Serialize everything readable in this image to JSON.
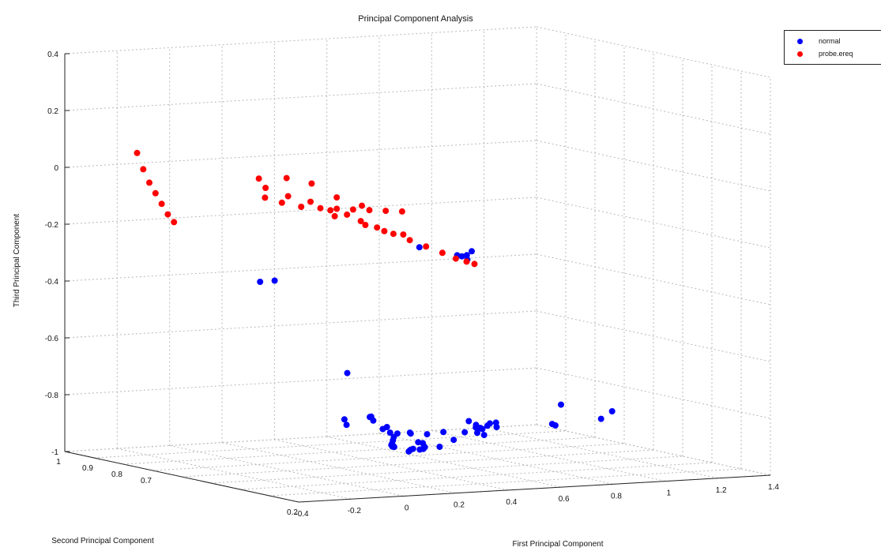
{
  "chart_data": {
    "type": "scatter",
    "projection": "3d",
    "title": "Principal Component Analysis",
    "xlabel": "First Principal Component",
    "ylabel": "Second Principal Component",
    "zlabel": "Third Principal Component",
    "xlim": [
      -0.4,
      1.4
    ],
    "ylim": [
      0.2,
      1
    ],
    "zlim": [
      -1,
      0.4
    ],
    "x_ticks": [
      "-0.4",
      "-0.2",
      "0",
      "0.2",
      "0.4",
      "0.6",
      "0.8",
      "1",
      "1.2",
      "1.4"
    ],
    "y_ticks": [
      "1",
      "0.9",
      "0.8",
      "0.7",
      "0.6",
      "0.5",
      "0.4",
      "0.3",
      "0.2"
    ],
    "y_tick_labels_shown": [
      "1",
      "0.9",
      "0.8",
      "0.7",
      "0.2"
    ],
    "z_ticks": [
      "0.4",
      "0.2",
      "0",
      "-0.2",
      "-0.4",
      "-0.6",
      "-0.8",
      "-1"
    ],
    "grid": true,
    "legend_position": "top-right",
    "series": [
      {
        "name": "normal",
        "color": "#0000ff",
        "points": [
          [
            0.15,
            0.28,
            -0.15
          ],
          [
            0.35,
            0.33,
            -0.2
          ],
          [
            0.39,
            0.35,
            -0.21
          ],
          [
            0.4,
            0.34,
            -0.22
          ],
          [
            0.42,
            0.36,
            -0.21
          ],
          [
            0.45,
            0.37,
            -0.2
          ],
          [
            0.1,
            0.78,
            -0.38
          ],
          [
            0.2,
            0.82,
            -0.39
          ],
          [
            0.12,
            0.5,
            -0.64
          ],
          [
            -0.05,
            0.35,
            -0.78
          ],
          [
            0.02,
            0.42,
            -0.78
          ],
          [
            0.05,
            0.36,
            -0.76
          ],
          [
            0.1,
            0.4,
            -0.77
          ],
          [
            0.13,
            0.42,
            -0.79
          ],
          [
            0.16,
            0.4,
            -0.81
          ],
          [
            0.2,
            0.45,
            -0.83
          ],
          [
            0.25,
            0.47,
            -0.85
          ],
          [
            0.3,
            0.49,
            -0.86
          ],
          [
            0.27,
            0.42,
            -0.84
          ],
          [
            0.32,
            0.52,
            -0.88
          ],
          [
            0.35,
            0.55,
            -0.9
          ],
          [
            0.38,
            0.58,
            -0.92
          ],
          [
            0.34,
            0.48,
            -0.86
          ],
          [
            0.4,
            0.6,
            -0.93
          ],
          [
            0.43,
            0.62,
            -0.94
          ],
          [
            0.46,
            0.65,
            -0.95
          ],
          [
            0.5,
            0.68,
            -0.96
          ],
          [
            0.48,
            0.58,
            -0.92
          ],
          [
            0.52,
            0.6,
            -0.93
          ],
          [
            0.55,
            0.62,
            -0.95
          ],
          [
            0.58,
            0.65,
            -0.96
          ],
          [
            0.6,
            0.67,
            -0.97
          ],
          [
            0.62,
            0.7,
            -0.98
          ],
          [
            0.6,
            0.72,
            -0.99
          ],
          [
            0.63,
            0.74,
            -0.99
          ],
          [
            0.65,
            0.75,
            -0.99
          ],
          [
            0.64,
            0.65,
            -0.96
          ],
          [
            0.66,
            0.62,
            -0.93
          ],
          [
            0.68,
            0.6,
            -0.9
          ],
          [
            0.7,
            0.58,
            -0.88
          ],
          [
            0.72,
            0.55,
            -0.86
          ],
          [
            0.71,
            0.52,
            -0.85
          ],
          [
            0.69,
            0.5,
            -0.86
          ],
          [
            0.75,
            0.62,
            -0.91
          ],
          [
            0.78,
            0.65,
            -0.9
          ],
          [
            0.8,
            0.63,
            -0.89
          ],
          [
            0.62,
            0.48,
            -0.88
          ],
          [
            0.58,
            0.45,
            -0.85
          ],
          [
            0.55,
            0.43,
            -0.84
          ],
          [
            0.5,
            0.4,
            -0.82
          ],
          [
            0.45,
            0.38,
            -0.8
          ],
          [
            0.42,
            0.44,
            -0.85
          ],
          [
            0.38,
            0.46,
            -0.86
          ],
          [
            0.88,
            0.45,
            -0.78
          ],
          [
            0.97,
            0.55,
            -0.88
          ],
          [
            0.98,
            0.57,
            -0.88
          ],
          [
            1.2,
            0.6,
            -0.88
          ],
          [
            1.22,
            0.58,
            -0.85
          ]
        ]
      },
      {
        "name": "probe.ereq",
        "color": "#ff0000",
        "points": [
          [
            -0.18,
            0.95,
            0.05
          ],
          [
            -0.19,
            0.92,
            0.0
          ],
          [
            -0.2,
            0.89,
            -0.04
          ],
          [
            -0.21,
            0.86,
            -0.07
          ],
          [
            -0.22,
            0.83,
            -0.1
          ],
          [
            -0.23,
            0.8,
            -0.13
          ],
          [
            -0.24,
            0.77,
            -0.15
          ],
          [
            -0.08,
            0.6,
            0.0
          ],
          [
            -0.05,
            0.55,
            -0.02
          ],
          [
            -0.02,
            0.5,
            -0.03
          ],
          [
            0.0,
            0.45,
            -0.05
          ],
          [
            0.03,
            0.42,
            -0.06
          ],
          [
            0.06,
            0.4,
            -0.08
          ],
          [
            0.1,
            0.38,
            -0.1
          ],
          [
            0.14,
            0.36,
            -0.12
          ],
          [
            0.18,
            0.34,
            -0.14
          ],
          [
            0.22,
            0.32,
            -0.16
          ],
          [
            0.26,
            0.3,
            -0.18
          ],
          [
            0.3,
            0.29,
            -0.2
          ],
          [
            0.33,
            0.28,
            -0.21
          ],
          [
            0.36,
            0.28,
            -0.22
          ],
          [
            -0.06,
            0.62,
            -0.04
          ],
          [
            -0.04,
            0.58,
            -0.05
          ],
          [
            0.0,
            0.55,
            -0.06
          ],
          [
            0.04,
            0.52,
            -0.06
          ],
          [
            0.08,
            0.5,
            -0.06
          ],
          [
            0.12,
            0.48,
            -0.06
          ],
          [
            0.16,
            0.46,
            -0.06
          ],
          [
            0.2,
            0.44,
            -0.06
          ],
          [
            0.24,
            0.42,
            -0.06
          ],
          [
            -0.05,
            0.65,
            0.02
          ],
          [
            0.0,
            0.6,
            0.03
          ],
          [
            0.04,
            0.55,
            0.02
          ],
          [
            0.08,
            0.5,
            -0.02
          ],
          [
            0.12,
            0.45,
            -0.04
          ],
          [
            0.05,
            0.48,
            -0.08
          ],
          [
            0.1,
            0.42,
            -0.1
          ],
          [
            0.15,
            0.4,
            -0.12
          ],
          [
            0.2,
            0.38,
            -0.13
          ]
        ]
      }
    ]
  }
}
